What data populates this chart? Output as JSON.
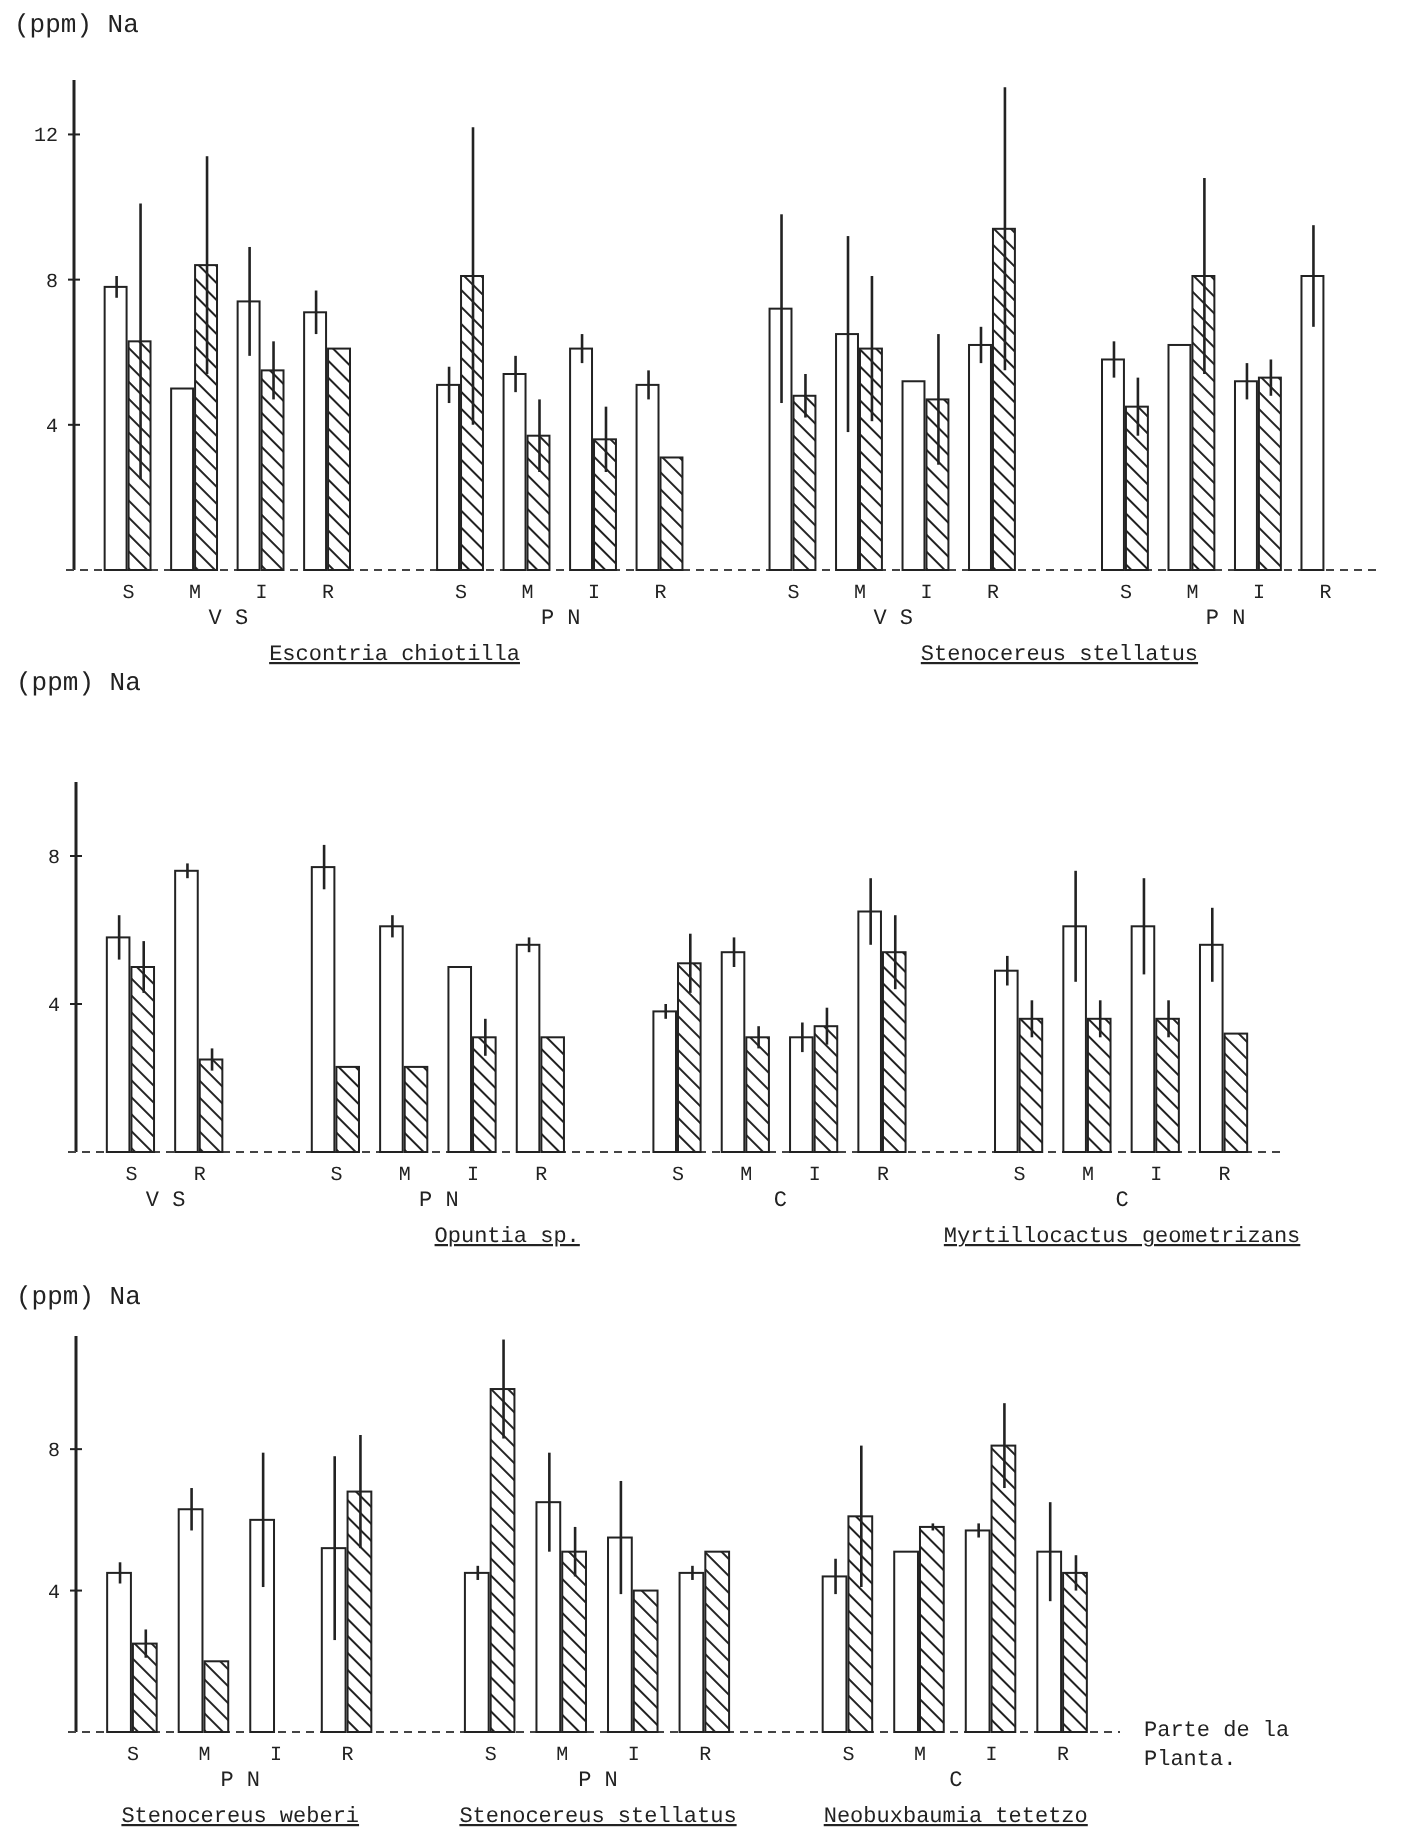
{
  "chart_data": [
    {
      "type": "bar",
      "ylabel": "(ppm) Na",
      "ylim": [
        0,
        13.5
      ],
      "yticks": [
        4,
        8,
        12
      ],
      "grid": false,
      "categories": [
        "S",
        "M",
        "I",
        "R",
        null,
        "S",
        "M",
        "I",
        "R",
        null,
        "S",
        "M",
        "I",
        "R",
        null,
        "S",
        "M",
        "I",
        "R"
      ],
      "series": [
        {
          "color": "#ffffff",
          "values": [
            7.8,
            5.0,
            7.4,
            7.1,
            null,
            5.1,
            5.4,
            6.1,
            5.1,
            null,
            7.2,
            6.5,
            5.2,
            6.2,
            null,
            5.8,
            6.2,
            5.2,
            8.1
          ],
          "errors": [
            0.3,
            null,
            1.5,
            0.6,
            null,
            0.5,
            0.5,
            0.4,
            0.4,
            null,
            2.6,
            2.7,
            null,
            0.5,
            null,
            0.5,
            null,
            0.5,
            1.4
          ]
        },
        {
          "color": "#222222",
          "values": [
            6.3,
            8.4,
            5.5,
            6.1,
            null,
            8.1,
            3.7,
            3.6,
            3.1,
            null,
            4.8,
            6.1,
            4.7,
            9.4,
            null,
            4.5,
            8.1,
            5.3,
            null
          ],
          "errors": [
            3.8,
            3.0,
            0.8,
            null,
            null,
            4.1,
            1.0,
            0.9,
            null,
            null,
            0.6,
            2.0,
            1.8,
            3.9,
            null,
            0.8,
            2.7,
            0.5,
            null
          ]
        }
      ],
      "annotations": [
        "V S",
        "P N",
        "V S",
        "P N",
        "Escontria chiotilla",
        "Stenocereus stellatus"
      ]
    },
    {
      "type": "bar",
      "ylabel": "(ppm) Na",
      "ylim": [
        0,
        10
      ],
      "yticks": [
        4,
        8
      ],
      "grid": false,
      "categories": [
        "S",
        "R",
        null,
        "S",
        "M",
        "I",
        "R",
        null,
        "S",
        "M",
        "I",
        "R",
        null,
        "S",
        "M",
        "I",
        "R"
      ],
      "series": [
        {
          "color": "#ffffff",
          "values": [
            5.8,
            7.6,
            null,
            7.7,
            6.1,
            5.0,
            5.6,
            null,
            3.8,
            5.4,
            3.1,
            6.5,
            null,
            4.9,
            6.1,
            6.1,
            5.6
          ],
          "errors": [
            0.6,
            0.2,
            null,
            0.6,
            0.3,
            null,
            0.2,
            null,
            0.2,
            0.4,
            0.4,
            0.9,
            null,
            0.4,
            1.5,
            1.3,
            1.0
          ]
        },
        {
          "color": "#222222",
          "values": [
            5.0,
            2.5,
            null,
            2.3,
            2.3,
            3.1,
            3.1,
            null,
            5.1,
            3.1,
            3.4,
            5.4,
            null,
            3.6,
            3.6,
            3.6,
            3.2
          ],
          "errors": [
            0.7,
            0.3,
            null,
            null,
            null,
            0.5,
            null,
            null,
            0.8,
            0.3,
            0.5,
            1.0,
            null,
            0.5,
            0.5,
            0.5,
            null
          ]
        }
      ],
      "annotations": [
        "V S",
        "P N",
        "C",
        "C",
        "Opuntia sp.",
        "Myrtillocactus geometrizans"
      ]
    },
    {
      "type": "bar",
      "ylabel": "(ppm) Na",
      "xlabel": "Parte de la Planta.",
      "ylim": [
        0,
        11.2
      ],
      "yticks": [
        4,
        8
      ],
      "grid": false,
      "categories": [
        "S",
        "M",
        "I",
        "R",
        null,
        "S",
        "M",
        "I",
        "R",
        null,
        "S",
        "M",
        "I",
        "R"
      ],
      "series": [
        {
          "color": "#ffffff",
          "values": [
            4.5,
            6.3,
            6.0,
            5.2,
            null,
            4.5,
            6.5,
            5.5,
            4.5,
            null,
            4.4,
            5.1,
            5.7,
            5.1
          ],
          "errors": [
            0.3,
            0.6,
            1.9,
            2.6,
            null,
            0.2,
            1.4,
            1.6,
            0.2,
            null,
            0.5,
            null,
            0.2,
            1.4
          ]
        },
        {
          "color": "#222222",
          "values": [
            2.5,
            2.0,
            null,
            6.8,
            null,
            9.7,
            5.1,
            4.0,
            5.1,
            null,
            6.1,
            5.8,
            8.1,
            4.5
          ],
          "errors": [
            0.4,
            null,
            null,
            1.6,
            null,
            1.4,
            0.7,
            null,
            null,
            null,
            2.0,
            0.1,
            1.2,
            0.5
          ]
        }
      ],
      "annotations": [
        "P N",
        "P N",
        "C",
        "Stenocereus weberi",
        "Stenocereus stellatus",
        "Neobuxbaumia tetetzo"
      ]
    }
  ]
}
